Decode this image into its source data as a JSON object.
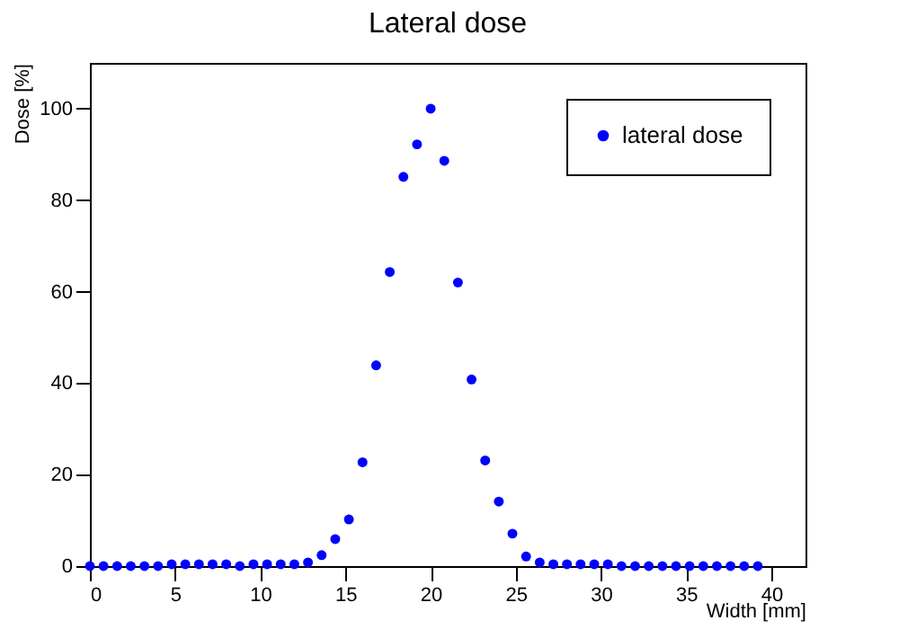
{
  "chart_data": {
    "type": "scatter",
    "title": "Lateral dose",
    "xlabel": "Width [mm]",
    "ylabel": "Dose [%]",
    "x": [
      0,
      0.8,
      1.6,
      2.4,
      3.2,
      4.0,
      4.8,
      5.6,
      6.4,
      7.2,
      8.0,
      8.8,
      9.6,
      10.4,
      11.2,
      12.0,
      12.8,
      13.6,
      14.4,
      15.2,
      16.0,
      16.8,
      17.6,
      18.4,
      19.2,
      20.0,
      20.8,
      21.6,
      22.4,
      23.2,
      24.0,
      24.8,
      25.6,
      26.4,
      27.2,
      28.0,
      28.8,
      29.6,
      30.4,
      31.2,
      32.0,
      32.8,
      33.6,
      34.4,
      35.2,
      36.0,
      36.8,
      37.6,
      38.4,
      39.2
    ],
    "series": [
      {
        "name": "lateral dose",
        "color": "#0000ff",
        "values": [
          0,
          0,
          0,
          0,
          0,
          0,
          0.4,
          0.4,
          0.4,
          0.4,
          0.4,
          0,
          0.4,
          0.4,
          0.4,
          0.4,
          0.8,
          2.4,
          5.9,
          10.2,
          22.7,
          43.9,
          64.3,
          85.1,
          92.2,
          100,
          88.6,
          62,
          40.8,
          23.1,
          14.1,
          7.1,
          2.1,
          0.8,
          0.4,
          0.4,
          0.4,
          0.4,
          0.4,
          0,
          0,
          0,
          0,
          0,
          0,
          0,
          0,
          0,
          0,
          0
        ]
      }
    ],
    "xlim": [
      0,
      42
    ],
    "xticks": [
      0,
      5,
      10,
      15,
      20,
      25,
      30,
      35,
      40
    ],
    "ylim": [
      0,
      110
    ],
    "yticks": [
      0,
      20,
      40,
      60,
      80,
      100
    ],
    "grid": false,
    "legend": "top right",
    "marker": "circle"
  }
}
